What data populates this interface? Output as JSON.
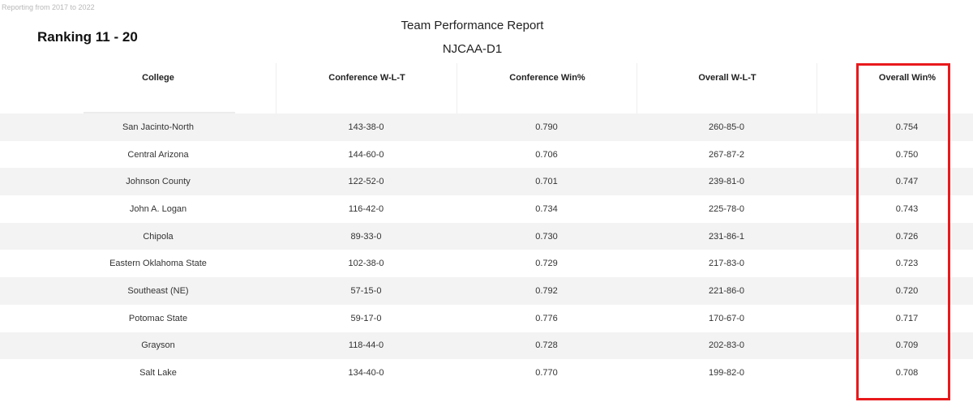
{
  "reporting_note": "Reporting from 2017 to 2022",
  "ranking_label": "Ranking 11 - 20",
  "report": {
    "title": "Team Performance Report",
    "subtitle": "NJCAA-D1"
  },
  "table": {
    "columns": [
      "College",
      "Conference W-L-T",
      "Conference Win%",
      "Overall W-L-T",
      "Overall Win%"
    ],
    "rows": [
      [
        "San Jacinto-North",
        "143-38-0",
        "0.790",
        "260-85-0",
        "0.754"
      ],
      [
        "Central Arizona",
        "144-60-0",
        "0.706",
        "267-87-2",
        "0.750"
      ],
      [
        "Johnson County",
        "122-52-0",
        "0.701",
        "239-81-0",
        "0.747"
      ],
      [
        "John A. Logan",
        "116-42-0",
        "0.734",
        "225-78-0",
        "0.743"
      ],
      [
        "Chipola",
        "89-33-0",
        "0.730",
        "231-86-1",
        "0.726"
      ],
      [
        "Eastern Oklahoma State",
        "102-38-0",
        "0.729",
        "217-83-0",
        "0.723"
      ],
      [
        "Southeast (NE)",
        "57-15-0",
        "0.792",
        "221-86-0",
        "0.720"
      ],
      [
        "Potomac State",
        "59-17-0",
        "0.776",
        "170-67-0",
        "0.717"
      ],
      [
        "Grayson",
        "118-44-0",
        "0.728",
        "202-83-0",
        "0.709"
      ],
      [
        "Salt Lake",
        "134-40-0",
        "0.770",
        "199-82-0",
        "0.708"
      ]
    ]
  },
  "colors": {
    "highlight_border": "#e8191c",
    "row_shade": "#f3f3f3"
  }
}
